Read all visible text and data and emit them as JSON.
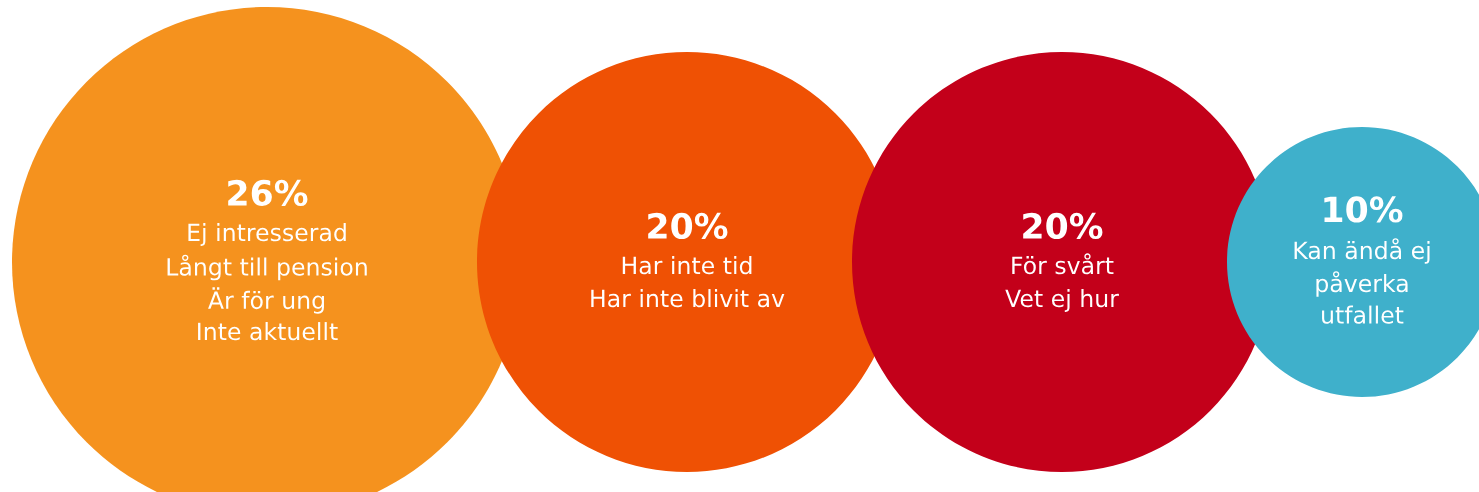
{
  "chart_data": {
    "type": "other",
    "categories": [
      "Ej intresserad\nLångt till pension\nÄr för ung\nInte aktuellt",
      "Har inte tid\nHar inte blivit av",
      "För svårt\nVet ej hur",
      "Kan ändå ej\npåverka\nutfallet"
    ],
    "values": [
      26,
      20,
      20,
      10
    ],
    "value_labels": [
      "26%",
      "20%",
      "20%",
      "10%"
    ],
    "colors": [
      "#f5921e",
      "#ef5104",
      "#c3001a",
      "#3fb0cb"
    ]
  }
}
